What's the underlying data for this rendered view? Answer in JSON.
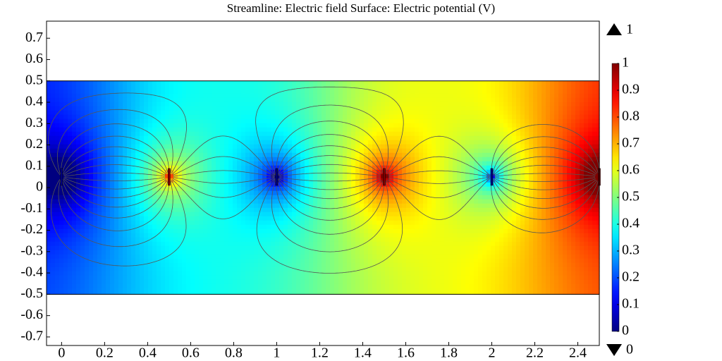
{
  "chart_data": {
    "type": "surface",
    "title": "Streamline: Electric field Surface: Electric potential (V)",
    "xlim": [
      -0.07,
      2.5
    ],
    "ylim": [
      -0.74,
      0.78
    ],
    "xticks": [
      0,
      0.2,
      0.4,
      0.6,
      0.8,
      1,
      1.2,
      1.4,
      1.6,
      1.8,
      2,
      2.2,
      2.4
    ],
    "yticks": [
      -0.7,
      -0.6,
      -0.5,
      -0.4,
      -0.3,
      -0.2,
      -0.1,
      0,
      0.1,
      0.2,
      0.3,
      0.4,
      0.5,
      0.6,
      0.7
    ],
    "domain_ylim": [
      -0.5,
      0.5
    ],
    "electrode_y": 0.05,
    "electrodes": [
      {
        "x": 0,
        "value": 0
      },
      {
        "x": 0.5,
        "value": 1
      },
      {
        "x": 1,
        "value": 0
      },
      {
        "x": 1.5,
        "value": 1
      },
      {
        "x": 2,
        "value": 0
      },
      {
        "x": 2.5,
        "value": 1
      }
    ],
    "colorbar": {
      "clim": [
        0,
        1
      ],
      "ticks": [
        0,
        0.1,
        0.2,
        0.3,
        0.4,
        0.5,
        0.6,
        0.7,
        0.8,
        0.9,
        1
      ],
      "colormap": "rainbow"
    },
    "max_value": 1,
    "min_value": 0,
    "streamline_color": "#555555"
  }
}
